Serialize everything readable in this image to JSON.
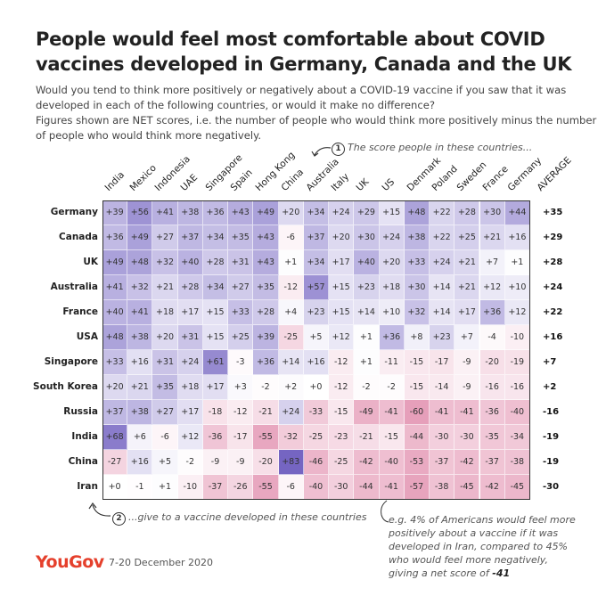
{
  "title": "People would feel most comfortable about COVID vaccines developed in Germany, Canada and the UK",
  "subtitle1": "Would you tend to think more positively or negatively about a COVID-19 vaccine if you saw that it was developed in each of the following countries, or would it make no difference?",
  "subtitle2": "Figures shown are NET scores, i.e. the number of people who would think more positively minus the number of people who would think more negatively.",
  "note1_num": "1",
  "note1": "The score people in these countries...",
  "note2_num": "2",
  "note2": "...give to a vaccine developed in these countries",
  "note3": "e.g. 4% of Americans would feel more positively about a vaccine if it was developed in Iran, compared to 45% who would feel more negatively, giving a net score of ",
  "note3_bold": "-41",
  "logo": "YouGov",
  "date": "7-20 December 2020",
  "colors": {
    "positive": "#7565c2",
    "negative": "#de7fa3",
    "logo": "#e5402c"
  },
  "chart_data": {
    "type": "heatmap",
    "columns": [
      "India",
      "Mexico",
      "Indonesia",
      "UAE",
      "Singapore",
      "Spain",
      "Hong Kong",
      "China",
      "Australia",
      "Italy",
      "UK",
      "US",
      "Denmark",
      "Poland",
      "Sweden",
      "France",
      "Germany"
    ],
    "average_label": "AVERAGE",
    "rows": [
      "Germany",
      "Canada",
      "UK",
      "Australia",
      "France",
      "USA",
      "Singapore",
      "South Korea",
      "Russia",
      "India",
      "China",
      "Iran"
    ],
    "values": [
      [
        39,
        56,
        41,
        38,
        36,
        43,
        49,
        20,
        34,
        24,
        29,
        15,
        48,
        22,
        28,
        30,
        44
      ],
      [
        36,
        49,
        27,
        37,
        34,
        35,
        43,
        -6,
        37,
        20,
        30,
        24,
        38,
        22,
        25,
        21,
        16
      ],
      [
        49,
        48,
        32,
        40,
        28,
        31,
        43,
        1,
        34,
        17,
        40,
        20,
        33,
        24,
        21,
        7,
        1
      ],
      [
        41,
        32,
        21,
        28,
        34,
        27,
        35,
        -12,
        57,
        15,
        23,
        18,
        30,
        14,
        21,
        12,
        10
      ],
      [
        40,
        41,
        18,
        17,
        15,
        33,
        28,
        4,
        23,
        15,
        14,
        10,
        32,
        14,
        17,
        36,
        12
      ],
      [
        48,
        38,
        20,
        31,
        15,
        25,
        39,
        -25,
        5,
        12,
        1,
        36,
        8,
        23,
        7,
        -4,
        -10
      ],
      [
        33,
        16,
        31,
        24,
        61,
        -3,
        36,
        14,
        16,
        -12,
        1,
        -11,
        -15,
        -17,
        -9,
        -20,
        -19
      ],
      [
        20,
        21,
        35,
        18,
        17,
        3,
        -2,
        2,
        0,
        -12,
        -2,
        -2,
        -15,
        -14,
        -9,
        -16,
        -16
      ],
      [
        37,
        38,
        27,
        17,
        -18,
        -12,
        -21,
        24,
        -33,
        -15,
        -49,
        -41,
        -60,
        -41,
        -41,
        -36,
        -40
      ],
      [
        68,
        6,
        -6,
        12,
        -36,
        -17,
        -55,
        -32,
        -25,
        -23,
        -21,
        -15,
        -44,
        -30,
        -30,
        -35,
        -34
      ],
      [
        -27,
        16,
        5,
        -2,
        -9,
        -9,
        -20,
        83,
        -46,
        -25,
        -42,
        -40,
        -53,
        -37,
        -42,
        -37,
        -38
      ],
      [
        0,
        -1,
        1,
        -10,
        -37,
        -26,
        -55,
        -6,
        -40,
        -30,
        -44,
        -41,
        -57,
        -38,
        -45,
        -42,
        -45
      ]
    ],
    "averages": [
      35,
      29,
      28,
      24,
      22,
      16,
      7,
      2,
      -16,
      -19,
      -19,
      -30
    ],
    "value_format": "signed"
  }
}
